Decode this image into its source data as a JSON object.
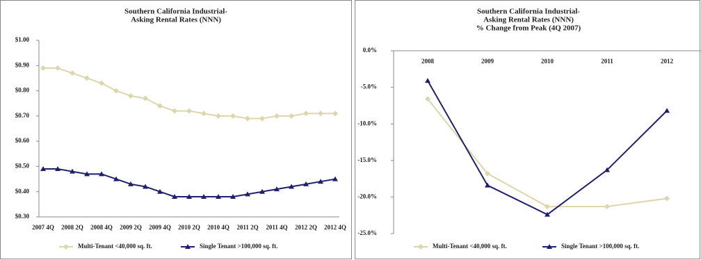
{
  "chart_data": [
    {
      "type": "line",
      "title": [
        "Southern California Industrial-",
        "Asking Rental Rates (NNN)"
      ],
      "categories": [
        "2007 4Q",
        null,
        "2008 2Q",
        null,
        "2008 4Q",
        null,
        "2009 2Q",
        null,
        "2009 4Q",
        null,
        "2010 2Q",
        null,
        "2010 4Q",
        null,
        "2011 2Q",
        null,
        "2011 4Q",
        null,
        "2012 2Q",
        null,
        "2012 4Q"
      ],
      "series": [
        {
          "name": "Multi-Tenant <40,000 sq. ft.",
          "color": "#dcd6ab",
          "marker": "diamond",
          "values": [
            0.89,
            0.89,
            0.87,
            0.85,
            0.83,
            0.8,
            0.78,
            0.77,
            0.74,
            0.72,
            0.72,
            0.71,
            0.7,
            0.7,
            0.69,
            0.69,
            0.7,
            0.7,
            0.71,
            0.71,
            0.71
          ]
        },
        {
          "name": "Single Tenant >100,000 sq. ft.",
          "color": "#1f1f6b",
          "marker": "triangle",
          "values": [
            0.49,
            0.49,
            0.48,
            0.47,
            0.47,
            0.45,
            0.43,
            0.42,
            0.4,
            0.38,
            0.38,
            0.38,
            0.38,
            0.38,
            0.39,
            0.4,
            0.41,
            0.42,
            0.43,
            0.44,
            0.45
          ]
        }
      ],
      "ylim": [
        0.3,
        1.0
      ],
      "yticks": [
        {
          "value": 0.3,
          "label": "$0.30"
        },
        {
          "value": 0.4,
          "label": "$0.40"
        },
        {
          "value": 0.5,
          "label": "$0.50"
        },
        {
          "value": 0.6,
          "label": "$0.60"
        },
        {
          "value": 0.7,
          "label": "$0.70"
        },
        {
          "value": 0.8,
          "label": "$0.80"
        },
        {
          "value": 0.9,
          "label": "$0.90"
        },
        {
          "value": 1.0,
          "label": "$1.00"
        }
      ],
      "x_axis_position": "bottom",
      "legend": "bottom"
    },
    {
      "type": "line",
      "title": [
        "Southern California Industrial-",
        "Asking Rental Rates (NNN)",
        "% Change from Peak (4Q 2007)"
      ],
      "categories": [
        "2008",
        "2009",
        "2010",
        "2011",
        "2012"
      ],
      "series": [
        {
          "name": "Multi-Tenant <40,000 sq. ft.",
          "color": "#dcd6ab",
          "marker": "diamond",
          "values": [
            -6.6,
            -16.8,
            -21.3,
            -21.3,
            -20.2
          ]
        },
        {
          "name": "Single Tenant >100,000 sq. ft.",
          "color": "#1f1f6b",
          "marker": "triangle",
          "values": [
            -4.1,
            -18.4,
            -22.4,
            -16.3,
            -8.2
          ]
        }
      ],
      "ylim": [
        -25,
        0
      ],
      "yticks": [
        {
          "value": -25,
          "label": "-25.0%"
        },
        {
          "value": -20,
          "label": "-20.0%"
        },
        {
          "value": -15,
          "label": "-15.0%"
        },
        {
          "value": -10,
          "label": "-10.0%"
        },
        {
          "value": -5,
          "label": "-5.0%"
        },
        {
          "value": 0,
          "label": "0.0%"
        }
      ],
      "x_axis_position": "top",
      "legend": "bottom"
    }
  ]
}
